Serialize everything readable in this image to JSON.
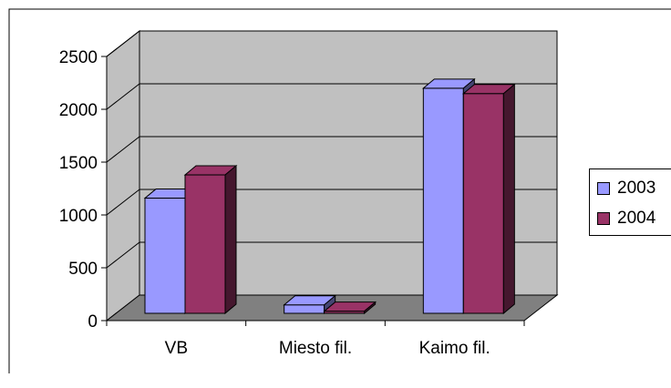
{
  "chart_data": {
    "type": "bar",
    "categories": [
      "VB",
      "Miesto fil.",
      "Kaimo fil."
    ],
    "series": [
      {
        "name": "2003",
        "values": [
          1090,
          80,
          2130
        ],
        "color": "#9999FF"
      },
      {
        "name": "2004",
        "values": [
          1310,
          20,
          2080
        ],
        "color": "#993366"
      }
    ],
    "yticks": [
      "0",
      "500",
      "1000",
      "1500",
      "2000",
      "2500"
    ],
    "ylim": [
      0,
      2500
    ],
    "grid": true,
    "legend_position": "right",
    "three_d": true,
    "wall_color": "#C0C0C0",
    "floor_color": "#808080"
  }
}
